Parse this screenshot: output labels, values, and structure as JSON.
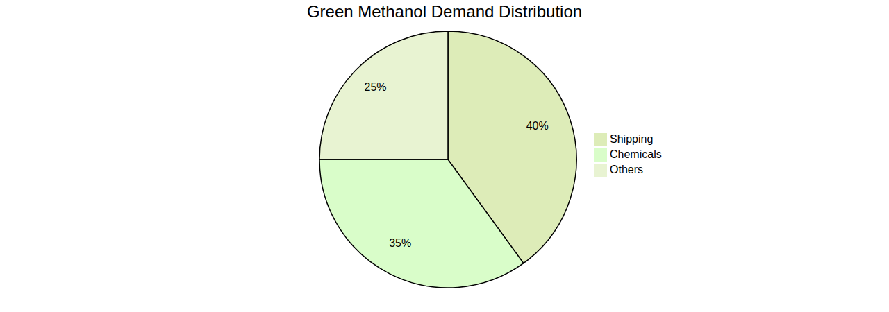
{
  "chart_data": {
    "type": "pie",
    "title": "Green Methanol Demand Distribution",
    "categories": [
      "Shipping",
      "Chemicals",
      "Others"
    ],
    "values": [
      40,
      35,
      25
    ],
    "value_labels": [
      "40%",
      "35%",
      "25%"
    ],
    "colors": [
      "#ddecb8",
      "#d9fdc9",
      "#e8f3d2"
    ],
    "data_labels": true,
    "legend": "right"
  }
}
